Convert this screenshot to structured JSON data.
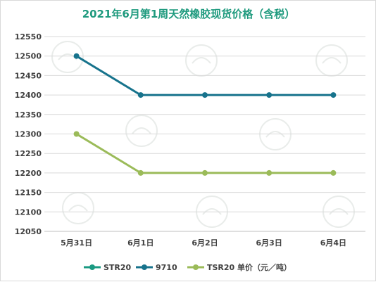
{
  "chart_data": {
    "type": "line",
    "title": "2021年6月第1周天然橡胶现货价格（含税）",
    "xlabel": "",
    "ylabel": "",
    "categories": [
      "5月31日",
      "6月1日",
      "6月2日",
      "6月3日",
      "6月4日"
    ],
    "ylim": [
      12050,
      12550
    ],
    "yticks": [
      12050,
      12100,
      12150,
      12200,
      12250,
      12300,
      12350,
      12400,
      12450,
      12500,
      12550
    ],
    "grid": true,
    "legend_position": "bottom",
    "legend": {
      "entries": [
        "STR20",
        "9710",
        "TSR20"
      ],
      "unit_label": "单价（元／吨）"
    },
    "series": [
      {
        "name": "STR20",
        "values": [
          12500,
          12400,
          12400,
          12400,
          12400
        ],
        "color": "#1a9a82",
        "drawn": false
      },
      {
        "name": "9710",
        "values": [
          12500,
          12400,
          12400,
          12400,
          12400
        ],
        "color": "#17738c",
        "drawn": true
      },
      {
        "name": "TSR20",
        "values": [
          12300,
          12200,
          12200,
          12200,
          12200
        ],
        "color": "#9bbb59",
        "drawn": true
      }
    ]
  }
}
